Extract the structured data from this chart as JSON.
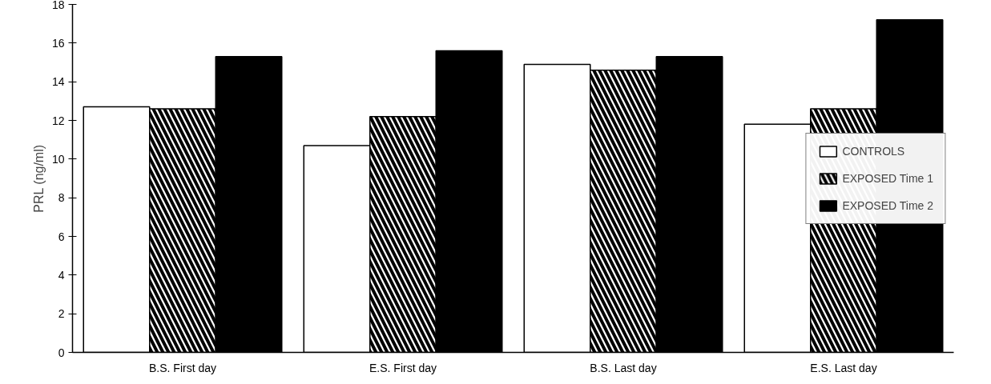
{
  "chart_data": {
    "type": "bar",
    "ylabel": "PRL (ng/ml)",
    "categories": [
      "B.S. First day",
      "E.S. First day",
      "B.S. Last day",
      "E.S. Last day"
    ],
    "series": [
      {
        "name": "CONTROLS",
        "color": "#ffffff",
        "values": [
          12.7,
          10.7,
          14.9,
          11.8
        ]
      },
      {
        "name": "EXPOSED Time 1",
        "color": "#ffffff",
        "values": [
          12.6,
          12.2,
          14.6,
          12.6
        ]
      },
      {
        "name": "EXPOSED Time 2",
        "color": "#000000",
        "values": [
          15.3,
          15.6,
          15.3,
          17.2
        ]
      }
    ],
    "ylim": [
      0,
      18
    ],
    "yticks": [
      0,
      2,
      4,
      6,
      8,
      10,
      12,
      14,
      16,
      18
    ],
    "grid": false,
    "legend": "right"
  }
}
